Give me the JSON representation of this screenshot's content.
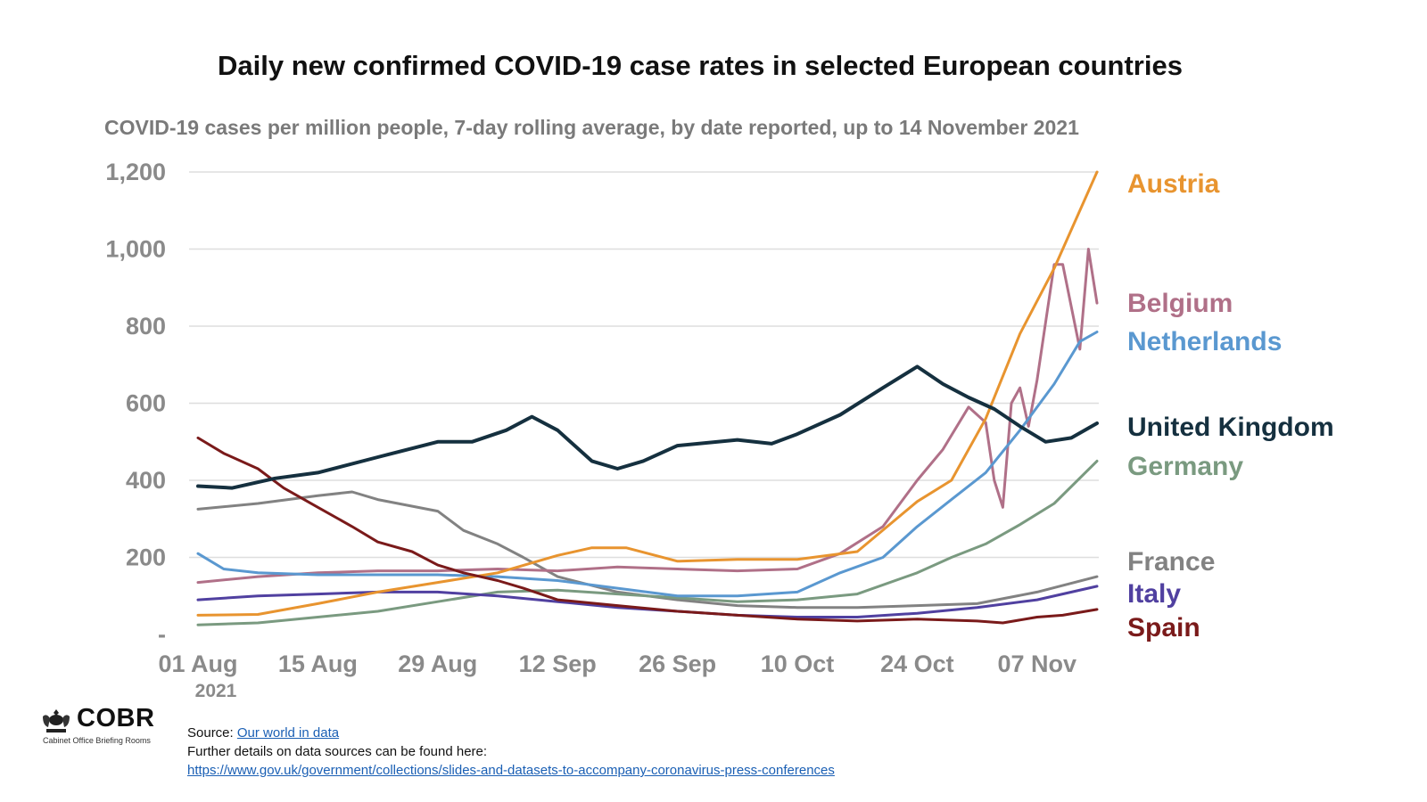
{
  "title": "Daily new confirmed COVID-19 case rates in selected European countries",
  "subtitle": "COVID-19 cases per million people, 7-day rolling average, by date reported, up to 14 November 2021",
  "logo": {
    "text": "COBR",
    "subtext": "Cabinet Office Briefing Rooms",
    "icon": "royal-crest-icon"
  },
  "footer": {
    "source_prefix": "Source: ",
    "source_link": "Our world in data",
    "details_text": "Further details on data sources can be found here:",
    "details_link": "https://www.gov.uk/government/collections/slides-and-datasets-to-accompany-coronavirus-press-conferences"
  },
  "chart_data": {
    "type": "line",
    "title": "Daily new confirmed COVID-19 case rates in selected European countries",
    "subtitle": "COVID-19 cases per million people, 7-day rolling average, by date reported, up to 14 November 2021",
    "xlabel": "",
    "ylabel": "",
    "x_start": "2021-08-01",
    "x_end": "2021-11-14",
    "x_tick_labels": [
      "01 Aug",
      "15 Aug",
      "29 Aug",
      "12 Sep",
      "26 Sep",
      "10 Oct",
      "24 Oct",
      "07 Nov"
    ],
    "x_year_label": "2021",
    "ylim": [
      0,
      1200
    ],
    "y_tick_values": [
      0,
      200,
      400,
      600,
      800,
      1000,
      1200
    ],
    "y_tick_labels": [
      "-",
      "200",
      "400",
      "600",
      "800",
      "1,000",
      "1,200"
    ],
    "grid": "horizontal",
    "legend": "right, labels at line ends",
    "series": [
      {
        "name": "Austria",
        "color": "#e8942f",
        "points": [
          [
            "2021-08-01",
            50
          ],
          [
            "2021-08-08",
            52
          ],
          [
            "2021-08-15",
            80
          ],
          [
            "2021-08-22",
            110
          ],
          [
            "2021-08-29",
            135
          ],
          [
            "2021-09-05",
            160
          ],
          [
            "2021-09-12",
            205
          ],
          [
            "2021-09-16",
            225
          ],
          [
            "2021-09-20",
            225
          ],
          [
            "2021-09-26",
            190
          ],
          [
            "2021-10-03",
            195
          ],
          [
            "2021-10-10",
            195
          ],
          [
            "2021-10-17",
            215
          ],
          [
            "2021-10-24",
            345
          ],
          [
            "2021-10-28",
            400
          ],
          [
            "2021-11-01",
            560
          ],
          [
            "2021-11-05",
            780
          ],
          [
            "2021-11-09",
            950
          ],
          [
            "2021-11-14",
            1200
          ]
        ]
      },
      {
        "name": "Belgium",
        "color": "#b07088",
        "points": [
          [
            "2021-08-01",
            135
          ],
          [
            "2021-08-08",
            150
          ],
          [
            "2021-08-15",
            160
          ],
          [
            "2021-08-22",
            165
          ],
          [
            "2021-08-29",
            165
          ],
          [
            "2021-09-05",
            170
          ],
          [
            "2021-09-12",
            165
          ],
          [
            "2021-09-19",
            175
          ],
          [
            "2021-09-26",
            170
          ],
          [
            "2021-10-03",
            165
          ],
          [
            "2021-10-10",
            170
          ],
          [
            "2021-10-15",
            210
          ],
          [
            "2021-10-20",
            280
          ],
          [
            "2021-10-24",
            400
          ],
          [
            "2021-10-27",
            480
          ],
          [
            "2021-10-30",
            590
          ],
          [
            "2021-11-01",
            550
          ],
          [
            "2021-11-02",
            400
          ],
          [
            "2021-11-03",
            330
          ],
          [
            "2021-11-04",
            600
          ],
          [
            "2021-11-05",
            640
          ],
          [
            "2021-11-06",
            540
          ],
          [
            "2021-11-07",
            660
          ],
          [
            "2021-11-09",
            960
          ],
          [
            "2021-11-10",
            960
          ],
          [
            "2021-11-12",
            740
          ],
          [
            "2021-11-13",
            1000
          ],
          [
            "2021-11-14",
            860
          ]
        ]
      },
      {
        "name": "Netherlands",
        "color": "#5a98d0",
        "points": [
          [
            "2021-08-01",
            210
          ],
          [
            "2021-08-04",
            170
          ],
          [
            "2021-08-08",
            160
          ],
          [
            "2021-08-15",
            155
          ],
          [
            "2021-08-22",
            155
          ],
          [
            "2021-08-29",
            155
          ],
          [
            "2021-09-05",
            150
          ],
          [
            "2021-09-12",
            140
          ],
          [
            "2021-09-19",
            120
          ],
          [
            "2021-09-26",
            100
          ],
          [
            "2021-10-03",
            100
          ],
          [
            "2021-10-10",
            110
          ],
          [
            "2021-10-15",
            160
          ],
          [
            "2021-10-20",
            200
          ],
          [
            "2021-10-24",
            280
          ],
          [
            "2021-10-28",
            350
          ],
          [
            "2021-11-01",
            420
          ],
          [
            "2021-11-05",
            530
          ],
          [
            "2021-11-09",
            650
          ],
          [
            "2021-11-12",
            760
          ],
          [
            "2021-11-14",
            785
          ]
        ]
      },
      {
        "name": "United Kingdom",
        "color": "#15303f",
        "points": [
          [
            "2021-08-01",
            385
          ],
          [
            "2021-08-05",
            380
          ],
          [
            "2021-08-10",
            405
          ],
          [
            "2021-08-15",
            420
          ],
          [
            "2021-08-22",
            460
          ],
          [
            "2021-08-29",
            500
          ],
          [
            "2021-09-02",
            500
          ],
          [
            "2021-09-06",
            530
          ],
          [
            "2021-09-09",
            565
          ],
          [
            "2021-09-12",
            530
          ],
          [
            "2021-09-16",
            450
          ],
          [
            "2021-09-19",
            430
          ],
          [
            "2021-09-22",
            450
          ],
          [
            "2021-09-26",
            490
          ],
          [
            "2021-10-03",
            505
          ],
          [
            "2021-10-07",
            495
          ],
          [
            "2021-10-10",
            520
          ],
          [
            "2021-10-15",
            570
          ],
          [
            "2021-10-20",
            640
          ],
          [
            "2021-10-24",
            695
          ],
          [
            "2021-10-27",
            650
          ],
          [
            "2021-10-30",
            615
          ],
          [
            "2021-11-02",
            585
          ],
          [
            "2021-11-05",
            540
          ],
          [
            "2021-11-08",
            500
          ],
          [
            "2021-11-11",
            510
          ],
          [
            "2021-11-14",
            548
          ]
        ]
      },
      {
        "name": "Germany",
        "color": "#7a9a80",
        "points": [
          [
            "2021-08-01",
            25
          ],
          [
            "2021-08-08",
            30
          ],
          [
            "2021-08-15",
            45
          ],
          [
            "2021-08-22",
            60
          ],
          [
            "2021-08-29",
            85
          ],
          [
            "2021-09-05",
            110
          ],
          [
            "2021-09-12",
            115
          ],
          [
            "2021-09-19",
            105
          ],
          [
            "2021-09-26",
            95
          ],
          [
            "2021-10-03",
            85
          ],
          [
            "2021-10-10",
            90
          ],
          [
            "2021-10-17",
            105
          ],
          [
            "2021-10-24",
            160
          ],
          [
            "2021-10-28",
            200
          ],
          [
            "2021-11-01",
            235
          ],
          [
            "2021-11-05",
            285
          ],
          [
            "2021-11-09",
            340
          ],
          [
            "2021-11-14",
            450
          ]
        ]
      },
      {
        "name": "France",
        "color": "#828282",
        "points": [
          [
            "2021-08-01",
            325
          ],
          [
            "2021-08-08",
            340
          ],
          [
            "2021-08-15",
            360
          ],
          [
            "2021-08-19",
            370
          ],
          [
            "2021-08-22",
            350
          ],
          [
            "2021-08-29",
            320
          ],
          [
            "2021-09-01",
            270
          ],
          [
            "2021-09-05",
            235
          ],
          [
            "2021-09-08",
            200
          ],
          [
            "2021-09-12",
            150
          ],
          [
            "2021-09-19",
            110
          ],
          [
            "2021-09-26",
            90
          ],
          [
            "2021-10-03",
            75
          ],
          [
            "2021-10-10",
            70
          ],
          [
            "2021-10-17",
            70
          ],
          [
            "2021-10-24",
            75
          ],
          [
            "2021-10-31",
            80
          ],
          [
            "2021-11-07",
            110
          ],
          [
            "2021-11-14",
            150
          ]
        ]
      },
      {
        "name": "Italy",
        "color": "#5040a0",
        "points": [
          [
            "2021-08-01",
            90
          ],
          [
            "2021-08-08",
            100
          ],
          [
            "2021-08-15",
            105
          ],
          [
            "2021-08-22",
            110
          ],
          [
            "2021-08-29",
            110
          ],
          [
            "2021-09-05",
            100
          ],
          [
            "2021-09-12",
            85
          ],
          [
            "2021-09-19",
            70
          ],
          [
            "2021-09-26",
            60
          ],
          [
            "2021-10-03",
            50
          ],
          [
            "2021-10-10",
            45
          ],
          [
            "2021-10-17",
            45
          ],
          [
            "2021-10-24",
            55
          ],
          [
            "2021-10-31",
            70
          ],
          [
            "2021-11-07",
            90
          ],
          [
            "2021-11-14",
            125
          ]
        ]
      },
      {
        "name": "Spain",
        "color": "#7a1a1a",
        "points": [
          [
            "2021-08-01",
            510
          ],
          [
            "2021-08-04",
            470
          ],
          [
            "2021-08-08",
            430
          ],
          [
            "2021-08-11",
            380
          ],
          [
            "2021-08-15",
            330
          ],
          [
            "2021-08-19",
            280
          ],
          [
            "2021-08-22",
            240
          ],
          [
            "2021-08-26",
            215
          ],
          [
            "2021-08-29",
            180
          ],
          [
            "2021-09-01",
            160
          ],
          [
            "2021-09-05",
            140
          ],
          [
            "2021-09-08",
            120
          ],
          [
            "2021-09-12",
            90
          ],
          [
            "2021-09-19",
            75
          ],
          [
            "2021-09-26",
            60
          ],
          [
            "2021-10-03",
            50
          ],
          [
            "2021-10-10",
            40
          ],
          [
            "2021-10-17",
            35
          ],
          [
            "2021-10-24",
            40
          ],
          [
            "2021-10-31",
            35
          ],
          [
            "2021-11-03",
            30
          ],
          [
            "2021-11-07",
            45
          ],
          [
            "2021-11-10",
            50
          ],
          [
            "2021-11-14",
            65
          ]
        ]
      }
    ]
  }
}
